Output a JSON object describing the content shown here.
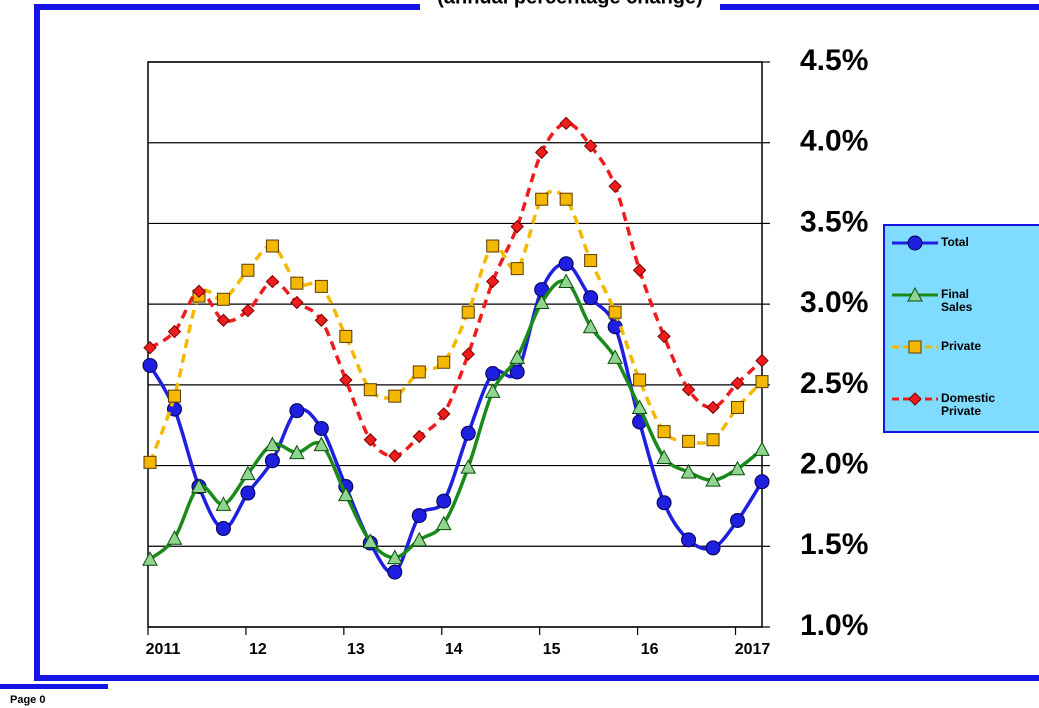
{
  "chart_data": {
    "type": "line",
    "subtitle": "(annual percentage change)",
    "footer": "Page 0",
    "categories": [
      "2011",
      null,
      null,
      null,
      "12",
      null,
      null,
      null,
      "13",
      null,
      null,
      null,
      "14",
      null,
      null,
      null,
      "15",
      null,
      null,
      null,
      "16",
      null,
      null,
      null,
      "2017",
      null
    ],
    "series": [
      {
        "name": "Total",
        "color": "#1f1fe0",
        "marker": "circle",
        "values": [
          2.62,
          2.35,
          1.87,
          1.61,
          1.83,
          2.03,
          2.34,
          2.23,
          1.87,
          1.52,
          1.34,
          1.69,
          1.78,
          2.2,
          2.57,
          2.58,
          3.09,
          3.25,
          3.04,
          2.86,
          2.27,
          1.77,
          1.54,
          1.49,
          1.66,
          1.9
        ]
      },
      {
        "name": "Final Sales",
        "color": "#1a8a1a",
        "marker": "triangle",
        "values": [
          1.42,
          1.55,
          1.87,
          1.76,
          1.95,
          2.13,
          2.08,
          2.13,
          1.82,
          1.53,
          1.43,
          1.54,
          1.64,
          1.99,
          2.46,
          2.67,
          3.01,
          3.14,
          2.86,
          2.67,
          2.36,
          2.05,
          1.96,
          1.91,
          1.98,
          2.1
        ]
      },
      {
        "name": "Private",
        "color": "#f5b800",
        "marker": "square",
        "dashed": true,
        "values": [
          2.02,
          2.43,
          3.05,
          3.03,
          3.21,
          3.36,
          3.13,
          3.11,
          2.8,
          2.47,
          2.43,
          2.58,
          2.64,
          2.95,
          3.36,
          3.22,
          3.65,
          3.65,
          3.27,
          2.95,
          2.53,
          2.21,
          2.15,
          2.16,
          2.36,
          2.52
        ]
      },
      {
        "name": "Domestic Private",
        "color": "#ee1c1c",
        "marker": "diamond",
        "dashed": true,
        "values": [
          2.73,
          2.83,
          3.08,
          2.9,
          2.96,
          3.14,
          3.01,
          2.9,
          2.53,
          2.16,
          2.06,
          2.18,
          2.32,
          2.69,
          3.14,
          3.48,
          3.94,
          4.12,
          3.98,
          3.73,
          3.21,
          2.8,
          2.47,
          2.36,
          2.51,
          2.65
        ]
      }
    ],
    "ylim": [
      1.0,
      4.5
    ],
    "yticks": [
      {
        "value": 1.0,
        "label": "1.0%"
      },
      {
        "value": 1.5,
        "label": "1.5%"
      },
      {
        "value": 2.0,
        "label": "2.0%"
      },
      {
        "value": 2.5,
        "label": "2.5%"
      },
      {
        "value": 3.0,
        "label": "3.0%"
      },
      {
        "value": 3.5,
        "label": "3.5%"
      },
      {
        "value": 4.0,
        "label": "4.0%"
      },
      {
        "value": 4.5,
        "label": "4.5%"
      }
    ],
    "grid": true,
    "legend": "right"
  }
}
